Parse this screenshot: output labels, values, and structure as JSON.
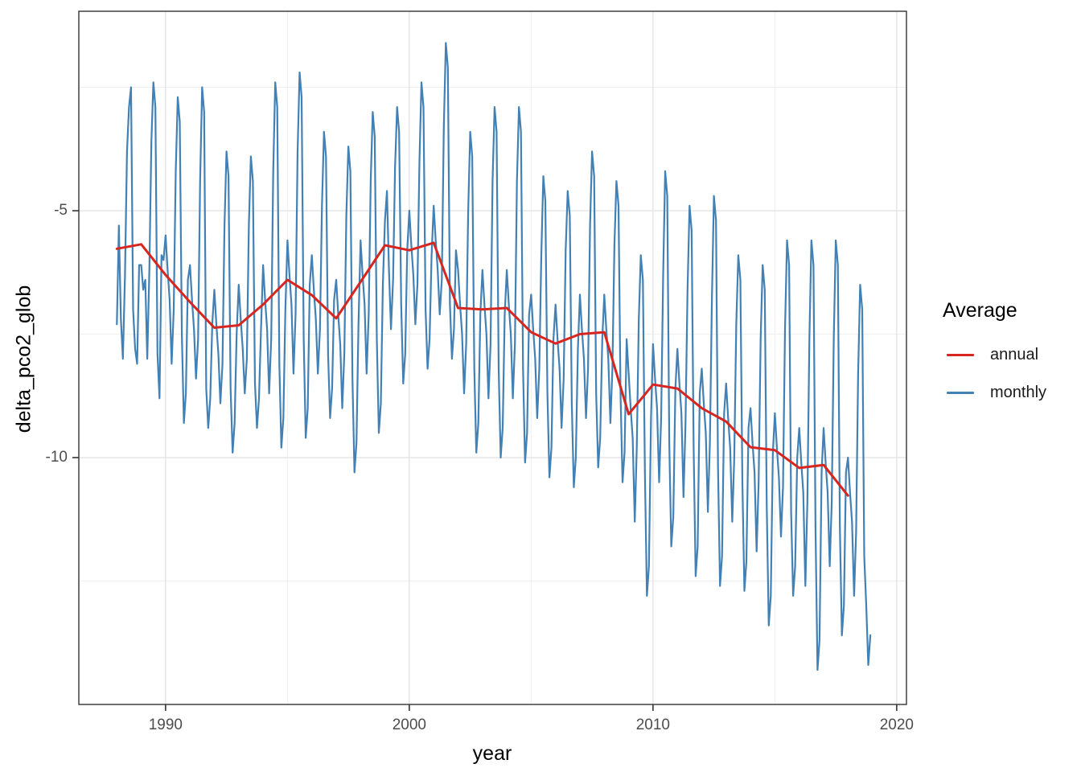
{
  "chart_data": {
    "type": "line",
    "title": "",
    "xlabel": "year",
    "ylabel": "delta_pco2_glob",
    "xlim": [
      1986.44,
      2020.4
    ],
    "ylim": [
      -15.0,
      -0.96
    ],
    "x_major_ticks": [
      1990,
      2000,
      2010,
      2020
    ],
    "x_tick_labels": [
      "1990",
      "2000",
      "2010",
      "2020"
    ],
    "x_minor_ticks": [
      1995,
      2005,
      2015
    ],
    "y_major_ticks": [
      -5,
      -10
    ],
    "y_tick_labels": [
      "-5",
      "-10"
    ],
    "y_minor_ticks": [
      -2.5,
      -7.5,
      -12.5
    ],
    "grid": true,
    "legend_position": "right",
    "legend": {
      "title": "Average",
      "entries": [
        {
          "label": "annual",
          "color": "#d7261f"
        },
        {
          "label": "monthly",
          "color": "#4381b5"
        }
      ]
    },
    "style": {
      "panel_border": "#333333",
      "grid_major": "#e4e4e4",
      "grid_minor": "#efefef",
      "tick_color": "#333333",
      "tick_text_color": "#4d4d4d"
    },
    "series": [
      {
        "name": "annual",
        "color": "#d7261f",
        "stroke_width": 3,
        "start_year": 1988,
        "values": [
          -5.77,
          -5.68,
          -6.3,
          -6.85,
          -7.37,
          -7.32,
          -6.9,
          -6.4,
          -6.71,
          -7.18,
          -6.44,
          -5.7,
          -5.8,
          -5.65,
          -6.97,
          -7.0,
          -6.97,
          -7.46,
          -7.69,
          -7.5,
          -7.46,
          -9.12,
          -8.52,
          -8.6,
          -9.0,
          -9.27,
          -9.79,
          -9.85,
          -10.21,
          -10.15,
          -10.77
        ]
      },
      {
        "name": "monthly",
        "color": "#4381b5",
        "stroke_width": 2.2,
        "monthly_by_year": [
          {
            "year": 1988,
            "values": [
              -7.3,
              -5.3,
              -7.2,
              -8.0,
              -6.3,
              -3.8,
              -2.9,
              -2.5,
              -7.0,
              -7.8,
              -8.1,
              -6.1
            ]
          },
          {
            "year": 1989,
            "values": [
              -6.1,
              -6.6,
              -6.4,
              -8.0,
              -6.2,
              -3.6,
              -2.4,
              -2.9,
              -7.9,
              -8.8,
              -5.9,
              -6.0
            ]
          },
          {
            "year": 1990,
            "values": [
              -5.5,
              -6.2,
              -6.8,
              -8.1,
              -7.0,
              -4.2,
              -2.7,
              -3.2,
              -7.5,
              -9.3,
              -8.7,
              -6.4
            ]
          },
          {
            "year": 1991,
            "values": [
              -6.1,
              -6.8,
              -7.4,
              -8.4,
              -7.6,
              -4.4,
              -2.5,
              -3.0,
              -8.6,
              -9.4,
              -8.8,
              -7.3
            ]
          },
          {
            "year": 1992,
            "values": [
              -6.6,
              -7.3,
              -7.9,
              -8.9,
              -8.1,
              -5.3,
              -3.8,
              -4.3,
              -8.6,
              -9.9,
              -9.3,
              -7.5
            ]
          },
          {
            "year": 1993,
            "values": [
              -6.5,
              -7.2,
              -7.8,
              -8.7,
              -8.0,
              -5.3,
              -3.9,
              -4.4,
              -8.5,
              -9.4,
              -8.8,
              -7.4
            ]
          },
          {
            "year": 1994,
            "values": [
              -6.1,
              -6.8,
              -7.4,
              -8.7,
              -7.6,
              -4.2,
              -2.4,
              -2.9,
              -8.1,
              -9.8,
              -9.2,
              -7.0
            ]
          },
          {
            "year": 1995,
            "values": [
              -5.6,
              -6.3,
              -6.9,
              -8.3,
              -7.1,
              -3.8,
              -2.2,
              -2.7,
              -7.6,
              -9.6,
              -9.0,
              -6.5
            ]
          },
          {
            "year": 1996,
            "values": [
              -5.9,
              -6.6,
              -7.2,
              -8.3,
              -7.4,
              -4.9,
              -3.4,
              -3.9,
              -7.9,
              -9.2,
              -8.6,
              -6.8
            ]
          },
          {
            "year": 1997,
            "values": [
              -6.4,
              -7.1,
              -7.7,
              -9.0,
              -7.9,
              -5.1,
              -3.7,
              -4.2,
              -8.4,
              -10.3,
              -9.7,
              -7.3
            ]
          },
          {
            "year": 1998,
            "values": [
              -5.6,
              -6.3,
              -6.9,
              -8.3,
              -7.1,
              -4.4,
              -3.0,
              -3.5,
              -7.6,
              -9.5,
              -8.9,
              -6.5
            ]
          },
          {
            "year": 1999,
            "values": [
              -5.2,
              -4.6,
              -6.2,
              -7.4,
              -6.4,
              -4.1,
              -2.9,
              -3.4,
              -6.9,
              -8.5,
              -7.9,
              -5.8
            ]
          },
          {
            "year": 2000,
            "values": [
              -5.0,
              -5.7,
              -6.3,
              -7.3,
              -6.5,
              -4.0,
              -2.4,
              -2.9,
              -7.0,
              -8.2,
              -7.6,
              -5.9
            ]
          },
          {
            "year": 2001,
            "values": [
              -4.9,
              -5.6,
              -6.2,
              -7.1,
              -6.4,
              -3.3,
              -1.6,
              -2.1,
              -6.9,
              -8.0,
              -7.4,
              -5.8
            ]
          },
          {
            "year": 2002,
            "values": [
              -6.2,
              -6.9,
              -7.5,
              -8.7,
              -7.7,
              -5.0,
              -3.4,
              -3.9,
              -8.2,
              -9.9,
              -9.3,
              -7.1
            ]
          },
          {
            "year": 2003,
            "values": [
              -6.2,
              -6.9,
              -7.5,
              -8.8,
              -7.7,
              -4.4,
              -2.9,
              -3.4,
              -8.2,
              -10.0,
              -9.4,
              -7.1
            ]
          },
          {
            "year": 2004,
            "values": [
              -6.2,
              -6.9,
              -7.5,
              -8.8,
              -7.7,
              -4.4,
              -2.9,
              -3.4,
              -8.2,
              -10.1,
              -9.5,
              -7.1
            ]
          },
          {
            "year": 2005,
            "values": [
              -6.7,
              -7.4,
              -8.0,
              -9.2,
              -8.2,
              -5.9,
              -4.3,
              -4.8,
              -8.7,
              -10.4,
              -9.8,
              -7.6
            ]
          },
          {
            "year": 2006,
            "values": [
              -6.9,
              -7.6,
              -8.2,
              -9.4,
              -8.4,
              -5.8,
              -4.6,
              -5.1,
              -8.9,
              -10.6,
              -10.0,
              -7.8
            ]
          },
          {
            "year": 2007,
            "values": [
              -6.7,
              -7.4,
              -8.0,
              -9.2,
              -8.2,
              -5.3,
              -3.8,
              -4.3,
              -8.7,
              -10.2,
              -9.6,
              -7.6
            ]
          },
          {
            "year": 2008,
            "values": [
              -6.7,
              -7.4,
              -8.0,
              -9.3,
              -8.2,
              -5.7,
              -4.4,
              -4.9,
              -8.7,
              -10.5,
              -9.9,
              -7.6
            ]
          },
          {
            "year": 2009,
            "values": [
              -8.3,
              -9.0,
              -9.6,
              -11.3,
              -9.8,
              -7.2,
              -5.9,
              -6.4,
              -10.3,
              -12.8,
              -12.2,
              -9.2
            ]
          },
          {
            "year": 2010,
            "values": [
              -7.7,
              -8.4,
              -9.0,
              -10.5,
              -9.2,
              -6.3,
              -4.2,
              -4.7,
              -9.7,
              -11.8,
              -11.2,
              -8.6
            ]
          },
          {
            "year": 2011,
            "values": [
              -7.8,
              -8.5,
              -9.1,
              -10.8,
              -9.3,
              -6.6,
              -4.9,
              -5.4,
              -9.8,
              -12.4,
              -11.8,
              -8.7
            ]
          },
          {
            "year": 2012,
            "values": [
              -8.2,
              -8.9,
              -9.5,
              -11.1,
              -9.7,
              -6.8,
              -4.7,
              -5.2,
              -10.2,
              -12.6,
              -12.0,
              -9.1
            ]
          },
          {
            "year": 2013,
            "values": [
              -8.5,
              -9.2,
              -9.8,
              -11.3,
              -10.0,
              -7.3,
              -5.9,
              -6.4,
              -10.5,
              -12.7,
              -12.1,
              -9.4
            ]
          },
          {
            "year": 2014,
            "values": [
              -9.0,
              -9.7,
              -10.3,
              -11.9,
              -10.5,
              -7.6,
              -6.1,
              -6.6,
              -11.0,
              -13.4,
              -12.8,
              -9.9
            ]
          },
          {
            "year": 2015,
            "values": [
              -9.1,
              -9.8,
              -10.4,
              -11.6,
              -10.6,
              -7.4,
              -5.6,
              -6.1,
              -11.1,
              -12.8,
              -12.2,
              -10.0
            ]
          },
          {
            "year": 2016,
            "values": [
              -9.4,
              -10.1,
              -10.7,
              -12.6,
              -10.9,
              -7.6,
              -5.6,
              -6.1,
              -11.4,
              -14.3,
              -13.7,
              -10.3
            ]
          },
          {
            "year": 2017,
            "values": [
              -9.4,
              -10.1,
              -10.7,
              -12.2,
              -10.9,
              -7.6,
              -5.6,
              -6.1,
              -11.4,
              -13.6,
              -13.0,
              -10.3
            ]
          },
          {
            "year": 2018,
            "values": [
              -10.0,
              -10.7,
              -11.3,
              -12.8,
              -11.5,
              -8.3,
              -6.5,
              -7.0,
              -12.0,
              -13.0,
              -14.2,
              -13.6
            ]
          }
        ]
      }
    ]
  }
}
